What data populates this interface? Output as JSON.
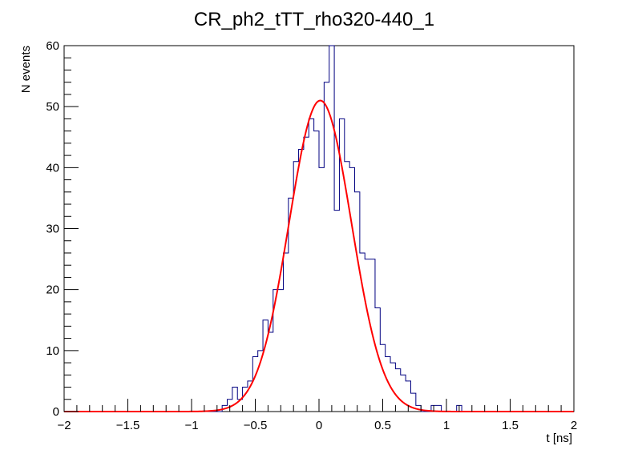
{
  "chart_data": {
    "type": "histogram",
    "title": "CR_ph2_tTT_rho320-440_1",
    "xlabel": "t [ns]",
    "ylabel": "N events",
    "xlim": [
      -2,
      2
    ],
    "ylim": [
      0,
      60
    ],
    "x_ticks": [
      -2,
      -1.5,
      -1,
      -0.5,
      0,
      0.5,
      1,
      1.5,
      2
    ],
    "x_tick_labels": [
      "−2",
      "−1.5",
      "−1",
      "−0.5",
      "0",
      "0.5",
      "1",
      "1.5",
      "2"
    ],
    "y_ticks": [
      0,
      10,
      20,
      30,
      40,
      50,
      60
    ],
    "y_tick_labels": [
      "0",
      "10",
      "20",
      "30",
      "40",
      "50",
      "60"
    ],
    "grid": false,
    "legend": "none",
    "bin_width": 0.04,
    "series": [
      {
        "kind": "histogram",
        "color": "#000080",
        "bin_low_edges": [
          -2.0,
          -1.96,
          -1.92,
          -1.88,
          -1.84,
          -1.8,
          -1.76,
          -1.72,
          -1.68,
          -1.64,
          -1.6,
          -1.56,
          -1.52,
          -1.48,
          -1.44,
          -1.4,
          -1.36,
          -1.32,
          -1.28,
          -1.24,
          -1.2,
          -1.16,
          -1.12,
          -1.08,
          -1.04,
          -1.0,
          -0.96,
          -0.92,
          -0.88,
          -0.84,
          -0.8,
          -0.76,
          -0.72,
          -0.68,
          -0.64,
          -0.6,
          -0.56,
          -0.52,
          -0.48,
          -0.44,
          -0.4,
          -0.36,
          -0.32,
          -0.28,
          -0.24,
          -0.2,
          -0.16,
          -0.12,
          -0.08,
          -0.04,
          0.0,
          0.04,
          0.08,
          0.12,
          0.16,
          0.2,
          0.24,
          0.28,
          0.32,
          0.36,
          0.4,
          0.44,
          0.48,
          0.52,
          0.56,
          0.6,
          0.64,
          0.68,
          0.72,
          0.76,
          0.8,
          0.84,
          0.88,
          0.92,
          0.96,
          1.0,
          1.04,
          1.08,
          1.12,
          1.16,
          1.2,
          1.24,
          1.28,
          1.32,
          1.36,
          1.4,
          1.44,
          1.48,
          1.52,
          1.56,
          1.6,
          1.64,
          1.68,
          1.72,
          1.76,
          1.8,
          1.84,
          1.88,
          1.92,
          1.96
        ],
        "counts": [
          0,
          0,
          0,
          0,
          0,
          0,
          0,
          0,
          0,
          0,
          0,
          0,
          0,
          0,
          0,
          0,
          0,
          0,
          0,
          0,
          0,
          0,
          0,
          0,
          0,
          0,
          0,
          0,
          0,
          0,
          0,
          1,
          2,
          4,
          2,
          4,
          5,
          9,
          10,
          15,
          13,
          20,
          20,
          26,
          35,
          41,
          43,
          45,
          48,
          46,
          40,
          54,
          63,
          33,
          48,
          41,
          40,
          36,
          26,
          25,
          25,
          17,
          11,
          9,
          8,
          7,
          6,
          5,
          3,
          1,
          0,
          0,
          1,
          1,
          0,
          0,
          0,
          1,
          0,
          0,
          0,
          0,
          0,
          0,
          0,
          0,
          0,
          0,
          0,
          0,
          0,
          0,
          0,
          0,
          0,
          0,
          0,
          0,
          0,
          0
        ]
      },
      {
        "kind": "gaussian-fit",
        "color": "#ff0000",
        "amplitude": 51,
        "mean": 0.01,
        "sigma": 0.245
      }
    ]
  }
}
